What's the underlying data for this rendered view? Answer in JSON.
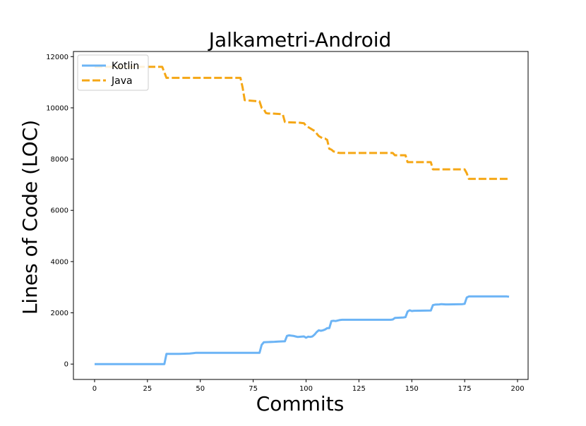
{
  "chart_data": {
    "type": "line",
    "title": "Jalkametri-Android",
    "xlabel": "Commits",
    "ylabel": "Lines of Code (LOC)",
    "xlim": [
      -10,
      205
    ],
    "ylim": [
      -600,
      12200
    ],
    "xticks": [
      0,
      25,
      50,
      75,
      100,
      125,
      150,
      175,
      200
    ],
    "yticks": [
      0,
      2000,
      4000,
      6000,
      8000,
      10000,
      12000
    ],
    "grid": false,
    "legend_position": "top-left",
    "series": [
      {
        "name": "Kotlin",
        "color": "#6cb4f5",
        "style": "solid",
        "x": [
          0,
          33,
          34,
          40,
          45,
          47,
          48,
          78,
          79,
          80,
          82,
          85,
          87,
          90,
          91,
          92,
          93,
          94,
          95,
          96,
          99,
          100,
          101,
          102,
          103,
          104,
          105,
          106,
          107,
          108,
          109,
          110,
          111,
          112,
          113,
          114,
          115,
          116,
          117,
          140,
          141,
          142,
          146,
          147,
          148,
          149,
          150,
          151,
          159,
          160,
          161,
          163,
          164,
          166,
          167,
          174,
          175,
          176,
          177,
          195,
          196
        ],
        "values": [
          0,
          0,
          400,
          400,
          410,
          430,
          440,
          440,
          750,
          850,
          860,
          870,
          880,
          890,
          1100,
          1120,
          1110,
          1100,
          1080,
          1060,
          1080,
          1030,
          1070,
          1060,
          1080,
          1150,
          1250,
          1320,
          1300,
          1320,
          1350,
          1400,
          1400,
          1680,
          1690,
          1680,
          1700,
          1720,
          1730,
          1730,
          1740,
          1800,
          1820,
          1830,
          2050,
          2100,
          2070,
          2080,
          2090,
          2300,
          2320,
          2330,
          2340,
          2330,
          2330,
          2340,
          2350,
          2600,
          2640,
          2640,
          2630
        ]
      },
      {
        "name": "Java",
        "color": "#f5a716",
        "style": "dashed",
        "x": [
          0,
          32,
          34,
          69,
          70,
          71,
          78,
          79,
          80,
          81,
          82,
          84,
          89,
          90,
          91,
          97,
          99,
          100,
          102,
          103,
          104,
          105,
          106,
          107,
          108,
          109,
          110,
          111,
          112,
          113,
          114,
          115,
          116,
          141,
          142,
          147,
          148,
          159,
          160,
          175,
          176,
          177,
          196
        ],
        "values": [
          11600,
          11600,
          11170,
          11170,
          10800,
          10300,
          10250,
          10000,
          9950,
          9800,
          9780,
          9780,
          9750,
          9450,
          9440,
          9420,
          9400,
          9300,
          9200,
          9150,
          9100,
          9000,
          8900,
          8850,
          8800,
          8800,
          8750,
          8400,
          8370,
          8300,
          8280,
          8250,
          8240,
          8240,
          8150,
          8150,
          7880,
          7880,
          7600,
          7600,
          7450,
          7230,
          7230
        ]
      }
    ]
  }
}
